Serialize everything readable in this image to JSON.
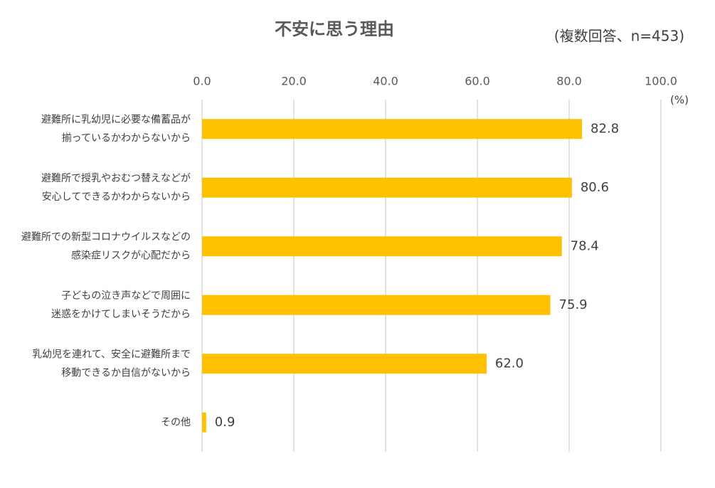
{
  "chart_data": {
    "type": "bar",
    "orientation": "horizontal",
    "title": "不安に思う理由",
    "subtitle": "(複数回答、n=453)",
    "unit_label": "(%)",
    "categories": [
      [
        "避難所に乳幼児に必要な備蓄品が",
        "揃っているかわからないから"
      ],
      [
        "避難所で授乳やおむつ替えなどが",
        "安心してできるかわからないから"
      ],
      [
        "避難所での新型コロナウイルスなどの",
        "感染症リスクが心配だから"
      ],
      [
        "子どもの泣き声などで周囲に",
        "迷惑をかけてしまいそうだから"
      ],
      [
        "乳幼児を連れて、安全に避難所まで",
        "移動できるか自信がないから"
      ],
      [
        "その他"
      ]
    ],
    "values": [
      82.8,
      80.6,
      78.4,
      75.9,
      62.0,
      0.9
    ],
    "value_labels": [
      "82.8",
      "80.6",
      "78.4",
      "75.9",
      "62.0",
      "0.9"
    ],
    "color": "#FFC000",
    "xlim": [
      0,
      100
    ],
    "xticks": [
      {
        "value": 0,
        "label": "0.0"
      },
      {
        "value": 20,
        "label": "20.0"
      },
      {
        "value": 40,
        "label": "40.0"
      },
      {
        "value": 60,
        "label": "60.0"
      },
      {
        "value": 80,
        "label": "80.0"
      },
      {
        "value": 100,
        "label": "100.0"
      }
    ],
    "grid": true
  }
}
